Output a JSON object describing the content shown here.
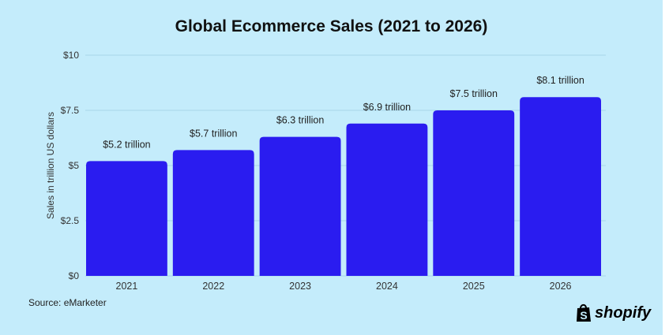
{
  "chart_data": {
    "type": "bar",
    "title": "Global Ecommerce Sales (2021 to 2026)",
    "ylabel": "Sales in trillion US dollars",
    "xlabel": "",
    "categories": [
      "2021",
      "2022",
      "2023",
      "2024",
      "2025",
      "2026"
    ],
    "values": [
      5.2,
      5.7,
      6.3,
      6.9,
      7.5,
      8.1
    ],
    "data_labels": [
      "$5.2 trillion",
      "$5.7 trillion",
      "$6.3 trillion",
      "$6.9 trillion",
      "$7.5 trillion",
      "$8.1 trillion"
    ],
    "yticks": [
      0,
      2.5,
      5,
      7.5,
      10
    ],
    "ytick_labels": [
      "$0",
      "$2.5",
      "$5",
      "$7.5",
      "$10"
    ],
    "ylim": [
      0,
      10
    ],
    "grid": true,
    "bar_color": "#2a1cf0",
    "background_color": "#c4ecfb"
  },
  "source": "Source: eMarketer",
  "logo": "shopify"
}
